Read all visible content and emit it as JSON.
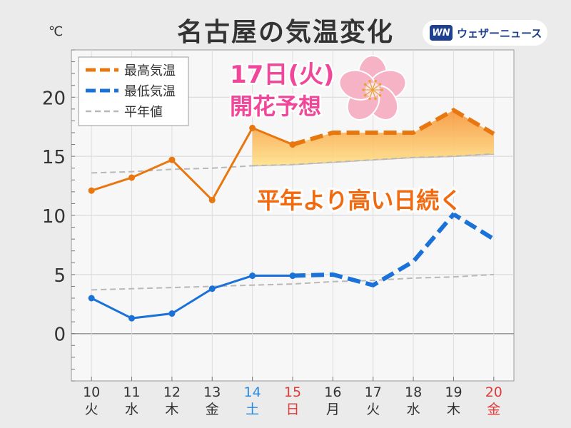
{
  "header": {
    "title": "名古屋の気温変化",
    "brand_logo": "WN",
    "brand_text": "ウェザーニュース",
    "unit": "℃"
  },
  "annotations": {
    "blossom_line1": "17日(火)",
    "blossom_line2": "開花予想",
    "note": "平年より高い日続く",
    "icon": "cherry-blossom-icon"
  },
  "colors": {
    "high": "#e8770f",
    "low": "#1a72d8",
    "normal": "#b8b8b8",
    "saturday": "#2a8ae0",
    "sunday": "#e03b3b",
    "blossom_text": "#f0479a"
  },
  "chart_data": {
    "type": "line",
    "ylim": [
      -4,
      24
    ],
    "yticks": [
      0,
      5,
      10,
      15,
      20
    ],
    "days": [
      "10",
      "11",
      "12",
      "13",
      "14",
      "15",
      "16",
      "17",
      "18",
      "19",
      "20"
    ],
    "weekdays": [
      "火",
      "水",
      "木",
      "金",
      "土",
      "日",
      "月",
      "火",
      "水",
      "木",
      "金"
    ],
    "day_colors": [
      "normal",
      "normal",
      "normal",
      "normal",
      "saturday",
      "sunday",
      "normal",
      "normal",
      "normal",
      "normal",
      "sunday"
    ],
    "forecast_start_index": 5,
    "grid": true,
    "legend_position": "top-left",
    "series": [
      {
        "name": "最高気温",
        "key": "high",
        "values": [
          12.1,
          13.2,
          14.7,
          11.3,
          17.4,
          16.0,
          17.0,
          17.0,
          17.0,
          18.9,
          16.9
        ]
      },
      {
        "name": "最低気温",
        "key": "low",
        "values": [
          3.0,
          1.3,
          1.7,
          3.8,
          4.9,
          4.9,
          5.0,
          4.1,
          6.1,
          10.1,
          8.0
        ]
      },
      {
        "name": "平年値",
        "key": "normal_high",
        "values": [
          13.6,
          13.7,
          13.9,
          14.0,
          14.2,
          14.3,
          14.5,
          14.7,
          14.9,
          15.0,
          15.2
        ]
      },
      {
        "name": "",
        "key": "normal_low",
        "values": [
          3.7,
          3.8,
          3.9,
          4.0,
          4.1,
          4.2,
          4.4,
          4.5,
          4.7,
          4.8,
          5.0
        ]
      }
    ]
  }
}
